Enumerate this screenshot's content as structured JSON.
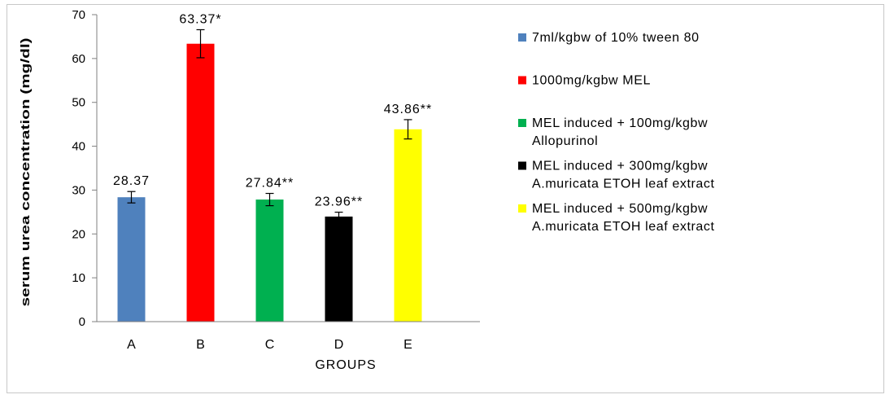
{
  "chart_data": {
    "type": "bar",
    "categories": [
      "A",
      "B",
      "C",
      "D",
      "E"
    ],
    "values": [
      28.37,
      63.37,
      27.84,
      23.96,
      43.86
    ],
    "errors": [
      1.3,
      3.2,
      1.4,
      1.0,
      2.2
    ],
    "data_labels": [
      "28.37",
      "63.37*",
      "27.84**",
      "23.96**",
      "43.86**"
    ],
    "colors": [
      "#4f81bd",
      "#ff0000",
      "#00b050",
      "#000000",
      "#ffff00"
    ],
    "xlabel": "GROUPS",
    "ylabel": "serum urea concentration (mg/dl)",
    "ylim": [
      0,
      70
    ],
    "yticks": [
      0,
      10,
      20,
      30,
      40,
      50,
      60,
      70
    ],
    "grid": false,
    "legend_position": "right",
    "legend": [
      {
        "lines": [
          "7ml/kgbw of 10% tween 80"
        ]
      },
      {
        "lines": [
          "1000mg/kgbw MEL"
        ]
      },
      {
        "lines": [
          "MEL induced + 100mg/kgbw",
          "Allopurinol"
        ]
      },
      {
        "lines": [
          "MEL induced + 300mg/kgbw",
          "A.muricata ETOH leaf extract"
        ]
      },
      {
        "lines": [
          "MEL induced + 500mg/kgbw",
          "A.muricata ETOH leaf extract"
        ]
      }
    ]
  }
}
